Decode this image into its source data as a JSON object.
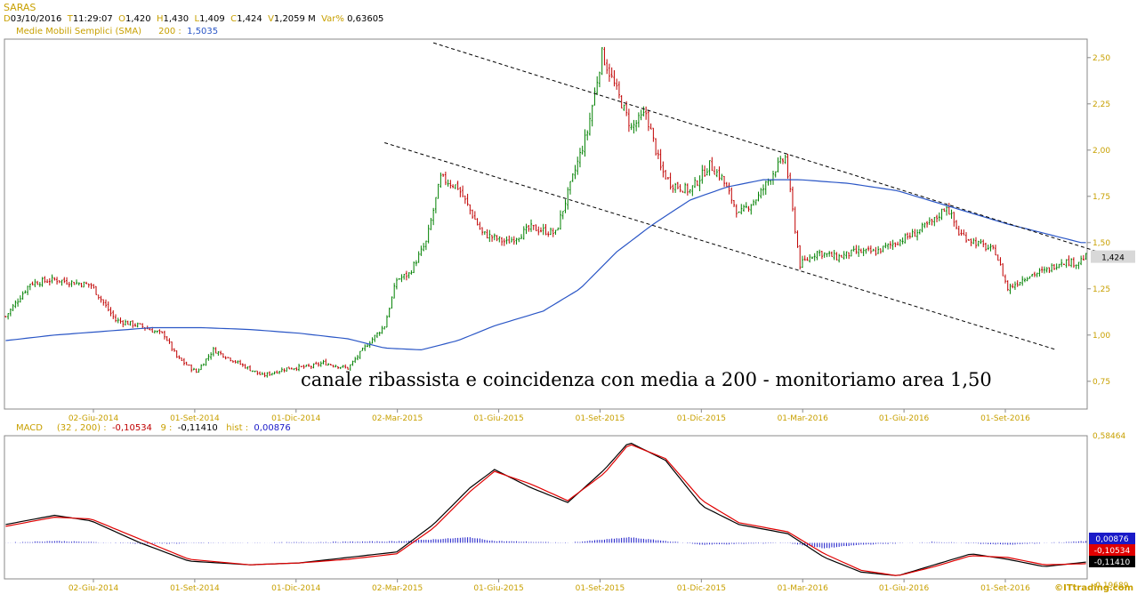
{
  "header": {
    "symbol": "SARAS",
    "d_key": "D",
    "date": "03/10/2016",
    "t_key": "T",
    "time": "11:29:07",
    "o_key": "O",
    "open": "1,420",
    "h_key": "H",
    "high": "1,430",
    "l_key": "L",
    "low": "1,409",
    "c_key": "C",
    "close": "1,424",
    "v_key": "V",
    "volume": "1,2059 M",
    "var_key": "Var%",
    "var": "0,63605"
  },
  "sma_legend": {
    "label": "Medie Mobili Semplici (SMA)",
    "period": "200 :",
    "value": "1,5035"
  },
  "macd_legend": {
    "label": "MACD",
    "params": "(32 , 200) :",
    "macd": "-0,10534",
    "signal_key": "9 :",
    "signal": "-0,11410",
    "hist_key": "hist :",
    "hist": "0,00876"
  },
  "watermark": "©ITtrading.com",
  "colors": {
    "up": "#008000",
    "down": "#c00000",
    "sma": "#2a56c6",
    "macd": "#000000",
    "signal": "#e00000",
    "hist": "#1a1ac8",
    "axis": "#c8a000"
  },
  "chart_data": [
    {
      "type": "candlestick",
      "ylim": [
        0.6,
        2.6
      ],
      "ytick_labels": [
        "2,50",
        "2,25",
        "2,00",
        "1,75",
        "1,50",
        "1,25",
        "1,00",
        "0,75"
      ],
      "yticks": [
        2.5,
        2.25,
        2.0,
        1.75,
        1.5,
        1.25,
        1.0,
        0.75
      ],
      "xtick_labels": [
        "02-Giu-2014",
        "01-Set-2014",
        "01-Dic-2014",
        "02-Mar-2015",
        "01-Giu-2015",
        "01-Set-2015",
        "01-Dic-2015",
        "01-Mar-2016",
        "01-Giu-2016",
        "01-Set-2016"
      ],
      "last_value_label": "1,424",
      "last_value": 1.424,
      "annotation": "canale ribassista e coincidenza con media a 200 - monitoriamo area 1,50",
      "price_path": [
        [
          0,
          1.1
        ],
        [
          10,
          1.28
        ],
        [
          20,
          1.3
        ],
        [
          35,
          1.27
        ],
        [
          45,
          1.08
        ],
        [
          55,
          1.05
        ],
        [
          65,
          1.0
        ],
        [
          70,
          0.88
        ],
        [
          78,
          0.8
        ],
        [
          85,
          0.92
        ],
        [
          95,
          0.85
        ],
        [
          105,
          0.78
        ],
        [
          115,
          0.82
        ],
        [
          125,
          0.83
        ],
        [
          130,
          0.85
        ],
        [
          140,
          0.82
        ],
        [
          148,
          0.95
        ],
        [
          155,
          1.05
        ],
        [
          160,
          1.3
        ],
        [
          165,
          1.33
        ],
        [
          172,
          1.5
        ],
        [
          178,
          1.85
        ],
        [
          185,
          1.8
        ],
        [
          195,
          1.55
        ],
        [
          205,
          1.5
        ],
        [
          215,
          1.58
        ],
        [
          225,
          1.55
        ],
        [
          232,
          1.85
        ],
        [
          238,
          2.1
        ],
        [
          244,
          2.52
        ],
        [
          250,
          2.32
        ],
        [
          256,
          2.12
        ],
        [
          262,
          2.2
        ],
        [
          268,
          1.9
        ],
        [
          272,
          1.82
        ],
        [
          280,
          1.78
        ],
        [
          288,
          1.92
        ],
        [
          293,
          1.85
        ],
        [
          300,
          1.65
        ],
        [
          308,
          1.75
        ],
        [
          315,
          1.9
        ],
        [
          319,
          1.96
        ],
        [
          325,
          1.38
        ],
        [
          332,
          1.45
        ],
        [
          340,
          1.42
        ],
        [
          348,
          1.45
        ],
        [
          356,
          1.45
        ],
        [
          364,
          1.5
        ],
        [
          372,
          1.55
        ],
        [
          380,
          1.62
        ],
        [
          385,
          1.7
        ],
        [
          390,
          1.55
        ],
        [
          397,
          1.5
        ],
        [
          405,
          1.45
        ],
        [
          410,
          1.25
        ],
        [
          418,
          1.32
        ],
        [
          426,
          1.35
        ],
        [
          432,
          1.4
        ],
        [
          438,
          1.39
        ],
        [
          442,
          1.424
        ]
      ],
      "sma_path": [
        [
          0,
          0.97
        ],
        [
          20,
          1.0
        ],
        [
          40,
          1.02
        ],
        [
          60,
          1.04
        ],
        [
          80,
          1.04
        ],
        [
          100,
          1.03
        ],
        [
          120,
          1.01
        ],
        [
          140,
          0.98
        ],
        [
          155,
          0.93
        ],
        [
          170,
          0.92
        ],
        [
          185,
          0.97
        ],
        [
          200,
          1.05
        ],
        [
          220,
          1.13
        ],
        [
          235,
          1.25
        ],
        [
          250,
          1.45
        ],
        [
          265,
          1.6
        ],
        [
          280,
          1.73
        ],
        [
          295,
          1.8
        ],
        [
          310,
          1.84
        ],
        [
          325,
          1.84
        ],
        [
          345,
          1.82
        ],
        [
          365,
          1.78
        ],
        [
          380,
          1.72
        ],
        [
          395,
          1.66
        ],
        [
          410,
          1.6
        ],
        [
          425,
          1.55
        ],
        [
          440,
          1.5
        ]
      ],
      "channel_upper": [
        [
          175,
          2.58
        ],
        [
          447,
          1.45
        ]
      ],
      "channel_lower": [
        [
          155,
          2.04
        ],
        [
          430,
          0.92
        ]
      ]
    },
    {
      "type": "line",
      "title": "MACD",
      "ylim": [
        -0.19689,
        0.58464
      ],
      "ytick_labels": [
        "0,58464",
        "-0,19689"
      ],
      "yticks": [
        0.58464,
        -0.19689
      ],
      "xtick_labels": [
        "02-Giu-2014",
        "01-Set-2014",
        "01-Dic-2014",
        "02-Mar-2015",
        "01-Giu-2015",
        "01-Set-2015",
        "01-Dic-2015",
        "01-Mar-2016",
        "01-Giu-2016",
        "01-Set-2016"
      ],
      "value_labels": [
        "0,00876",
        "-0,10534",
        "-0,11410"
      ],
      "series": [
        {
          "name": "MACD",
          "points": [
            [
              0,
              0.1
            ],
            [
              20,
              0.15
            ],
            [
              35,
              0.12
            ],
            [
              55,
              0.0
            ],
            [
              75,
              -0.1
            ],
            [
              100,
              -0.12
            ],
            [
              120,
              -0.11
            ],
            [
              140,
              -0.08
            ],
            [
              160,
              -0.05
            ],
            [
              175,
              0.1
            ],
            [
              190,
              0.3
            ],
            [
              200,
              0.4
            ],
            [
              215,
              0.3
            ],
            [
              230,
              0.22
            ],
            [
              245,
              0.4
            ],
            [
              255,
              0.55
            ],
            [
              270,
              0.45
            ],
            [
              285,
              0.2
            ],
            [
              300,
              0.1
            ],
            [
              320,
              0.05
            ],
            [
              335,
              -0.08
            ],
            [
              350,
              -0.16
            ],
            [
              365,
              -0.18
            ],
            [
              380,
              -0.12
            ],
            [
              395,
              -0.06
            ],
            [
              410,
              -0.09
            ],
            [
              425,
              -0.13
            ],
            [
              442,
              -0.10534
            ]
          ]
        },
        {
          "name": "9",
          "points": [
            [
              0,
              0.09
            ],
            [
              20,
              0.14
            ],
            [
              35,
              0.13
            ],
            [
              55,
              0.02
            ],
            [
              75,
              -0.09
            ],
            [
              100,
              -0.12
            ],
            [
              120,
              -0.11
            ],
            [
              140,
              -0.09
            ],
            [
              160,
              -0.06
            ],
            [
              175,
              0.08
            ],
            [
              190,
              0.28
            ],
            [
              200,
              0.39
            ],
            [
              215,
              0.32
            ],
            [
              230,
              0.23
            ],
            [
              245,
              0.38
            ],
            [
              255,
              0.54
            ],
            [
              270,
              0.46
            ],
            [
              285,
              0.23
            ],
            [
              300,
              0.11
            ],
            [
              320,
              0.06
            ],
            [
              335,
              -0.06
            ],
            [
              350,
              -0.15
            ],
            [
              365,
              -0.18
            ],
            [
              380,
              -0.13
            ],
            [
              395,
              -0.07
            ],
            [
              410,
              -0.08
            ],
            [
              425,
              -0.12
            ],
            [
              442,
              -0.1141
            ]
          ]
        }
      ],
      "hist_path": [
        [
          0,
          0.0
        ],
        [
          20,
          0.01
        ],
        [
          55,
          -0.005
        ],
        [
          100,
          0.0
        ],
        [
          160,
          0.008
        ],
        [
          190,
          0.03
        ],
        [
          200,
          0.01
        ],
        [
          230,
          0.0
        ],
        [
          255,
          0.03
        ],
        [
          285,
          -0.01
        ],
        [
          320,
          0.0
        ],
        [
          335,
          -0.03
        ],
        [
          350,
          -0.01
        ],
        [
          380,
          0.005
        ],
        [
          410,
          -0.01
        ],
        [
          442,
          0.00876
        ]
      ]
    }
  ]
}
